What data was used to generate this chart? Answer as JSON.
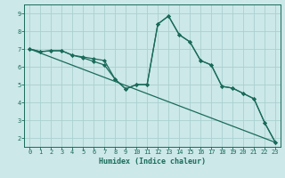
{
  "title": "",
  "xlabel": "Humidex (Indice chaleur)",
  "xlim": [
    -0.5,
    23.5
  ],
  "ylim": [
    1.5,
    9.5
  ],
  "yticks": [
    2,
    3,
    4,
    5,
    6,
    7,
    8,
    9
  ],
  "xticks": [
    0,
    1,
    2,
    3,
    4,
    5,
    6,
    7,
    8,
    9,
    10,
    11,
    12,
    13,
    14,
    15,
    16,
    17,
    18,
    19,
    20,
    21,
    22,
    23
  ],
  "background_color": "#cce8e8",
  "grid_color": "#aad0d0",
  "line_color": "#1a6b5a",
  "line1_x": [
    0,
    1,
    2,
    3,
    4,
    5,
    6,
    7,
    8,
    9,
    10,
    11,
    12,
    13,
    14,
    15,
    16,
    17,
    18,
    19,
    20,
    21,
    22,
    23
  ],
  "line1_y": [
    7.0,
    6.85,
    6.9,
    6.9,
    6.65,
    6.55,
    6.45,
    6.35,
    5.3,
    4.75,
    5.0,
    5.0,
    8.4,
    8.85,
    7.8,
    7.4,
    6.35,
    6.1,
    4.9,
    4.8,
    4.5,
    4.2,
    2.85,
    1.75
  ],
  "line2_x": [
    0,
    23
  ],
  "line2_y": [
    7.0,
    1.75
  ],
  "line3_x": [
    0,
    1,
    2,
    3,
    4,
    5,
    6,
    7,
    8,
    9,
    10,
    11,
    12,
    13,
    14,
    15,
    16,
    17,
    18,
    19,
    20,
    21,
    22,
    23
  ],
  "line3_y": [
    7.0,
    6.85,
    6.9,
    6.9,
    6.65,
    6.5,
    6.3,
    6.1,
    5.3,
    4.75,
    5.0,
    5.0,
    8.4,
    8.85,
    7.8,
    7.4,
    6.35,
    6.1,
    4.9,
    4.8,
    4.5,
    4.2,
    2.85,
    1.75
  ],
  "marker": "D",
  "marker_size": 2.0,
  "linewidth": 0.9,
  "tick_fontsize": 5.0,
  "xlabel_fontsize": 6.0
}
